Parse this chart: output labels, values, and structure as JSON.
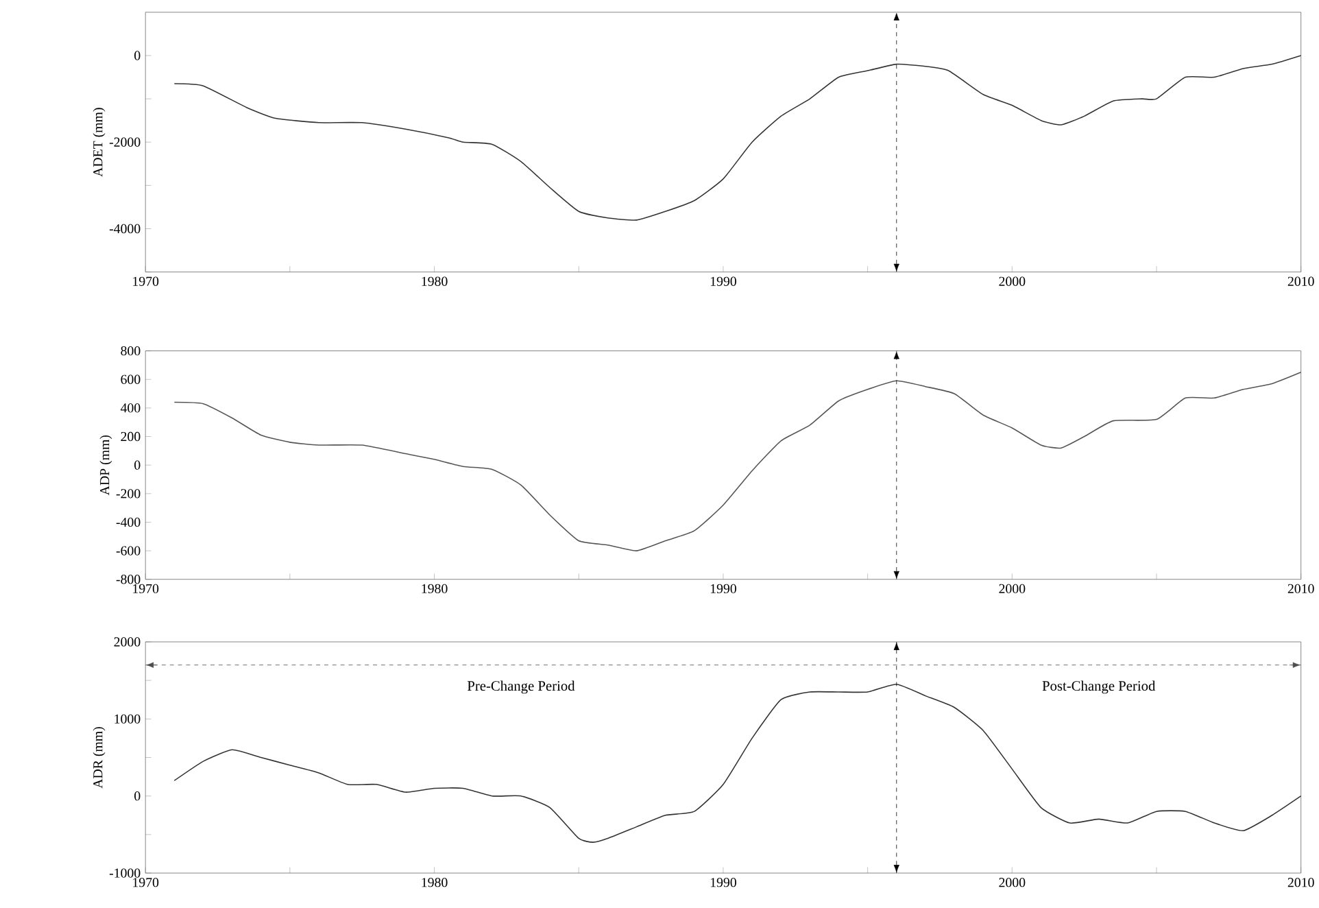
{
  "chart_data": [
    {
      "type": "line",
      "ylabel": "ADET (mm)",
      "marker": "none",
      "line_style": "solid",
      "xlim": [
        1970,
        2010
      ],
      "xticks": [
        1970,
        {
          "value": 1975,
          "label": null
        },
        1980,
        {
          "value": 1985,
          "label": null
        },
        1990,
        {
          "value": 1995,
          "label": null
        },
        2000,
        {
          "value": 2005,
          "label": null
        },
        2010
      ],
      "ylim": [
        -5000,
        1000
      ],
      "yticks": [
        {
          "value": -5000,
          "label": null
        },
        -4000,
        {
          "value": -3000,
          "label": null
        },
        -2000,
        {
          "value": -1000,
          "label": null
        },
        0
      ],
      "ref_lines": [
        {
          "axis": "x",
          "value": 1996,
          "line_style": "dashed"
        }
      ],
      "series": [
        {
          "color": "#333333",
          "x": [
            1971,
            1972,
            1973.5,
            1974.5,
            1976,
            1977.5,
            1979,
            1980.5,
            1981,
            1982,
            1983,
            1984,
            1985,
            1986,
            1987,
            1988,
            1989,
            1990,
            1991,
            1992,
            1993,
            1994,
            1995,
            1996,
            1997,
            1997.8,
            1999,
            2000,
            2001,
            2001.7,
            2002.5,
            2003.5,
            2004.5,
            2005,
            2006,
            2007,
            2008,
            2009,
            2010
          ],
          "values": [
            -650,
            -700,
            -1200,
            -1450,
            -1550,
            -1550,
            -1700,
            -1900,
            -2000,
            -2050,
            -2450,
            -3050,
            -3600,
            -3750,
            -3800,
            -3600,
            -3350,
            -2850,
            -2000,
            -1400,
            -1000,
            -500,
            -350,
            -200,
            -250,
            -350,
            -900,
            -1150,
            -1500,
            -1600,
            -1400,
            -1050,
            -1000,
            -1000,
            -500,
            -500,
            -300,
            -200,
            0
          ]
        }
      ]
    },
    {
      "type": "line",
      "ylabel": "ADP (mm)",
      "marker": "none",
      "line_style": "solid",
      "xlim": [
        1970,
        2010
      ],
      "xticks": [
        1970,
        {
          "value": 1975,
          "label": null
        },
        1980,
        {
          "value": 1985,
          "label": null
        },
        1990,
        {
          "value": 1995,
          "label": null
        },
        2000,
        {
          "value": 2005,
          "label": null
        },
        2010
      ],
      "ylim": [
        -800,
        800
      ],
      "yticks": [
        -800,
        -600,
        -400,
        -200,
        0,
        200,
        400,
        600,
        800
      ],
      "ref_lines": [
        {
          "axis": "x",
          "value": 1996,
          "line_style": "dashed"
        }
      ],
      "series": [
        {
          "color": "#555555",
          "x": [
            1971,
            1972,
            1973,
            1974,
            1975,
            1976,
            1977.5,
            1979,
            1980,
            1981,
            1982,
            1983,
            1984,
            1985,
            1986,
            1987,
            1988,
            1989,
            1990,
            1991,
            1992,
            1993,
            1994,
            1995,
            1996,
            1997,
            1998,
            1999,
            2000,
            2001,
            2001.7,
            2002.5,
            2003.5,
            2005,
            2006,
            2007,
            2008,
            2009,
            2010
          ],
          "values": [
            440,
            430,
            330,
            210,
            160,
            140,
            140,
            80,
            40,
            -10,
            -30,
            -140,
            -350,
            -530,
            -560,
            -600,
            -530,
            -460,
            -280,
            -40,
            170,
            280,
            450,
            530,
            590,
            550,
            500,
            350,
            260,
            140,
            120,
            200,
            310,
            320,
            470,
            470,
            530,
            570,
            650
          ]
        }
      ]
    },
    {
      "type": "line",
      "ylabel": "ADR (mm)",
      "marker": "none",
      "line_style": "solid",
      "xlim": [
        1970,
        2010
      ],
      "xticks": [
        1970,
        {
          "value": 1975,
          "label": null
        },
        1980,
        {
          "value": 1985,
          "label": null
        },
        1990,
        {
          "value": 1995,
          "label": null
        },
        2000,
        {
          "value": 2005,
          "label": null
        },
        2010
      ],
      "ylim": [
        -1000,
        2000
      ],
      "yticks": [
        -1000,
        {
          "value": -500,
          "label": null
        },
        0,
        {
          "value": 500,
          "label": null
        },
        1000,
        {
          "value": 1500,
          "label": null
        },
        2000
      ],
      "ref_lines": [
        {
          "axis": "x",
          "value": 1996,
          "line_style": "dashed"
        },
        {
          "axis": "y",
          "value": 1700,
          "line_style": "dashed"
        }
      ],
      "annotations": [
        "Pre-Change Period",
        "Post-Change Period"
      ],
      "series": [
        {
          "color": "#333333",
          "x": [
            1971,
            1972,
            1973,
            1974,
            1975,
            1976,
            1977,
            1978,
            1979,
            1980,
            1981,
            1982,
            1983,
            1984,
            1985,
            1985.5,
            1986,
            1987,
            1988,
            1989,
            1990,
            1991,
            1992,
            1993,
            1994,
            1995,
            1996,
            1997,
            1998,
            1999,
            2000,
            2001,
            2002,
            2003,
            2004,
            2005,
            2006,
            2007,
            2008,
            2009,
            2010
          ],
          "values": [
            200,
            450,
            600,
            500,
            400,
            300,
            150,
            150,
            50,
            100,
            100,
            0,
            0,
            -150,
            -550,
            -600,
            -550,
            -400,
            -250,
            -200,
            150,
            750,
            1250,
            1350,
            1350,
            1350,
            1450,
            1300,
            1150,
            850,
            350,
            -150,
            -350,
            -300,
            -350,
            -200,
            -200,
            -350,
            -450,
            -250,
            0
          ]
        }
      ]
    }
  ]
}
